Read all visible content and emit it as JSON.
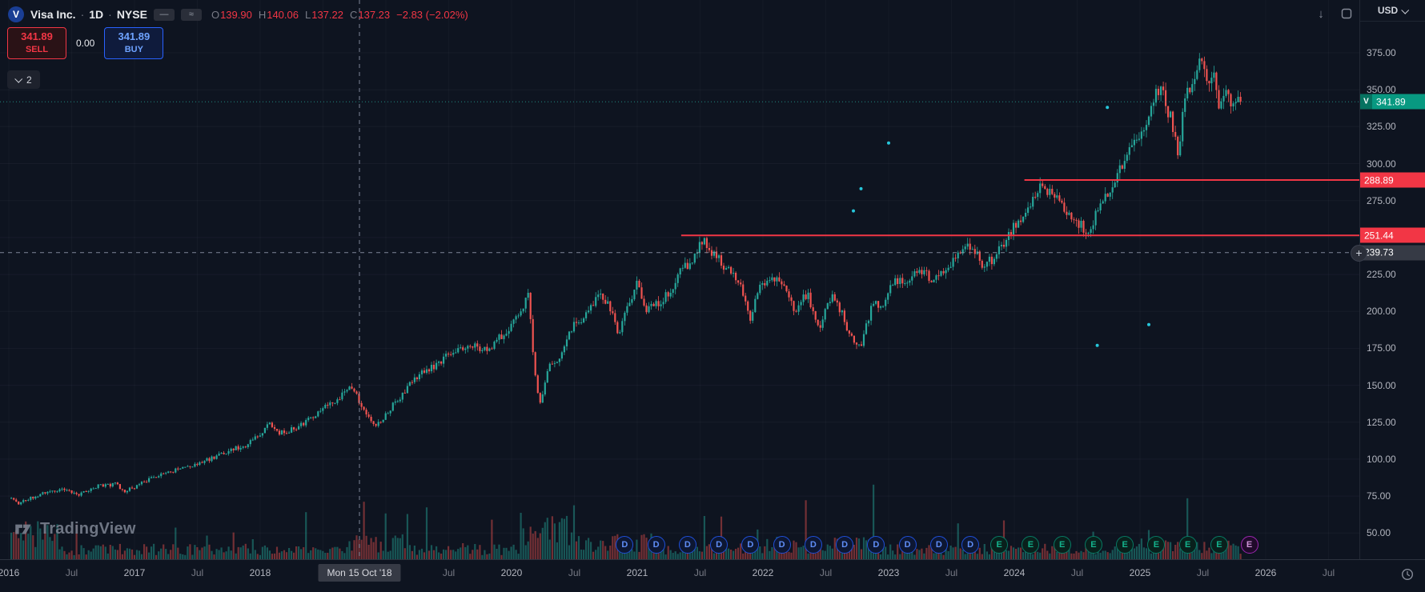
{
  "header": {
    "symbol_badge": "V",
    "title": "Visa Inc.",
    "sep": "·",
    "timeframe": "1D",
    "exchange": "NYSE",
    "ohlc": {
      "o_label": "O",
      "o": "139.90",
      "h_label": "H",
      "h": "140.06",
      "l_label": "L",
      "l": "137.22",
      "c_label": "C",
      "c": "137.23",
      "change": "−2.83 (−2.02%)"
    }
  },
  "trade_panel": {
    "sell_price": "341.89",
    "sell_label": "SELL",
    "spread": "0.00",
    "buy_price": "341.89",
    "buy_label": "BUY"
  },
  "object_tree": {
    "count": "2"
  },
  "icons": {
    "arrow_down": "↓",
    "plus": "+",
    "dash": "—",
    "approx": "≈"
  },
  "watermark": {
    "text": "TradingView"
  },
  "price_scale": {
    "currency": "USD",
    "labels": [
      {
        "p": 375,
        "text": "375.00"
      },
      {
        "p": 350,
        "text": "350.00"
      },
      {
        "p": 325,
        "text": "325.00"
      },
      {
        "p": 300,
        "text": "300.00"
      },
      {
        "p": 275,
        "text": "275.00"
      },
      {
        "p": 225,
        "text": "225.00"
      },
      {
        "p": 200,
        "text": "200.00"
      },
      {
        "p": 175,
        "text": "175.00"
      },
      {
        "p": 150,
        "text": "150.00"
      },
      {
        "p": 125,
        "text": "125.00"
      },
      {
        "p": 100,
        "text": "100.00"
      },
      {
        "p": 75,
        "text": "75.00"
      },
      {
        "p": 50,
        "text": "50.00"
      }
    ],
    "badges": [
      {
        "p": 341.89,
        "text": "341.89",
        "bg": "#089981",
        "tag": "V",
        "name": "current-price-badge"
      },
      {
        "p": 288.89,
        "text": "288.89",
        "bg": "#f23645",
        "name": "level-price-badge"
      },
      {
        "p": 251.44,
        "text": "251.44",
        "bg": "#f23645",
        "name": "level-price-badge"
      },
      {
        "p": 239.73,
        "text": "239.73",
        "bg": "#363a45",
        "name": "crosshair-price-badge"
      }
    ]
  },
  "time_scale": {
    "labels": [
      {
        "t": 2016.0,
        "text": "2016",
        "major": true
      },
      {
        "t": 2016.5,
        "text": "Jul",
        "major": false
      },
      {
        "t": 2017.0,
        "text": "2017",
        "major": true
      },
      {
        "t": 2017.5,
        "text": "Jul",
        "major": false
      },
      {
        "t": 2018.0,
        "text": "2018",
        "major": true
      },
      {
        "t": 2019.5,
        "text": "Jul",
        "major": false
      },
      {
        "t": 2020.0,
        "text": "2020",
        "major": true
      },
      {
        "t": 2020.5,
        "text": "Jul",
        "major": false
      },
      {
        "t": 2021.0,
        "text": "2021",
        "major": true
      },
      {
        "t": 2021.5,
        "text": "Jul",
        "major": false
      },
      {
        "t": 2022.0,
        "text": "2022",
        "major": true
      },
      {
        "t": 2022.5,
        "text": "Jul",
        "major": false
      },
      {
        "t": 2023.0,
        "text": "2023",
        "major": true
      },
      {
        "t": 2023.5,
        "text": "Jul",
        "major": false
      },
      {
        "t": 2024.0,
        "text": "2024",
        "major": true
      },
      {
        "t": 2024.5,
        "text": "Jul",
        "major": false
      },
      {
        "t": 2025.0,
        "text": "2025",
        "major": true
      },
      {
        "t": 2025.5,
        "text": "Jul",
        "major": false
      },
      {
        "t": 2026.0,
        "text": "2026",
        "major": true
      },
      {
        "t": 2026.5,
        "text": "Jul",
        "major": false
      }
    ],
    "date_badge": {
      "t": 2018.79,
      "text": "Mon 15 Oct '18"
    }
  },
  "event_markers": [
    {
      "t": 2020.9,
      "label": "D",
      "kind": "dividend"
    },
    {
      "t": 2021.15,
      "label": "D",
      "kind": "dividend"
    },
    {
      "t": 2021.4,
      "label": "D",
      "kind": "dividend"
    },
    {
      "t": 2021.65,
      "label": "D",
      "kind": "dividend"
    },
    {
      "t": 2021.9,
      "label": "D",
      "kind": "dividend"
    },
    {
      "t": 2022.15,
      "label": "D",
      "kind": "dividend"
    },
    {
      "t": 2022.4,
      "label": "D",
      "kind": "dividend"
    },
    {
      "t": 2022.65,
      "label": "D",
      "kind": "dividend"
    },
    {
      "t": 2022.9,
      "label": "D",
      "kind": "dividend"
    },
    {
      "t": 2023.15,
      "label": "D",
      "kind": "dividend"
    },
    {
      "t": 2023.4,
      "label": "D",
      "kind": "dividend"
    },
    {
      "t": 2023.65,
      "label": "D",
      "kind": "dividend"
    },
    {
      "t": 2023.88,
      "label": "E",
      "kind": "earnings"
    },
    {
      "t": 2024.13,
      "label": "E",
      "kind": "earnings"
    },
    {
      "t": 2024.38,
      "label": "E",
      "kind": "earnings"
    },
    {
      "t": 2024.63,
      "label": "E",
      "kind": "earnings"
    },
    {
      "t": 2024.88,
      "label": "E",
      "kind": "earnings"
    },
    {
      "t": 2025.13,
      "label": "E",
      "kind": "earnings"
    },
    {
      "t": 2025.38,
      "label": "E",
      "kind": "earnings"
    },
    {
      "t": 2025.63,
      "label": "E",
      "kind": "earnings"
    },
    {
      "t": 2025.87,
      "label": "E",
      "kind": "upcoming"
    }
  ],
  "chart_data": {
    "type": "candlestick",
    "title": "Visa Inc. · 1D · NYSE",
    "symbol": "V",
    "exchange": "NYSE",
    "timeframe": "1D",
    "currency": "USD",
    "x_range": [
      2016,
      2026.6
    ],
    "y_range": [
      32,
      410
    ],
    "grid_prices": [
      375,
      350,
      325,
      300,
      275,
      250,
      225,
      200,
      175,
      150,
      125,
      100,
      75,
      50
    ],
    "current_price": 341.89,
    "crosshair": {
      "t": 2018.79,
      "price": 239.73,
      "ohlc": [
        139.9,
        140.06,
        137.22,
        137.23
      ]
    },
    "levels": [
      {
        "price": 288.89,
        "start": 2024.08,
        "color": "#f23645"
      },
      {
        "price": 251.44,
        "start": 2021.35,
        "color": "#f23645"
      }
    ],
    "up_color": "#26a69a",
    "down_color": "#ef5350",
    "seed": 11,
    "candles_per_year": 52,
    "data_start": 2016.02,
    "data_end": 2025.8,
    "price_anchors": [
      [
        2016.0,
        75
      ],
      [
        2016.08,
        70
      ],
      [
        2016.15,
        73
      ],
      [
        2016.3,
        78
      ],
      [
        2016.45,
        80
      ],
      [
        2016.55,
        75
      ],
      [
        2016.7,
        82
      ],
      [
        2016.85,
        83
      ],
      [
        2016.92,
        78
      ],
      [
        2017.0,
        81
      ],
      [
        2017.15,
        88
      ],
      [
        2017.3,
        92
      ],
      [
        2017.45,
        95
      ],
      [
        2017.6,
        100
      ],
      [
        2017.75,
        106
      ],
      [
        2017.9,
        110
      ],
      [
        2018.0,
        117
      ],
      [
        2018.08,
        124
      ],
      [
        2018.15,
        117
      ],
      [
        2018.3,
        122
      ],
      [
        2018.45,
        131
      ],
      [
        2018.6,
        140
      ],
      [
        2018.72,
        148
      ],
      [
        2018.75,
        145
      ],
      [
        2018.79,
        139
      ],
      [
        2018.85,
        131
      ],
      [
        2018.92,
        123
      ],
      [
        2018.98,
        128
      ],
      [
        2019.1,
        141
      ],
      [
        2019.25,
        156
      ],
      [
        2019.4,
        164
      ],
      [
        2019.55,
        174
      ],
      [
        2019.7,
        178
      ],
      [
        2019.8,
        173
      ],
      [
        2019.9,
        182
      ],
      [
        2020.0,
        190
      ],
      [
        2020.1,
        206
      ],
      [
        2020.13,
        212
      ],
      [
        2020.18,
        165
      ],
      [
        2020.22,
        136
      ],
      [
        2020.3,
        162
      ],
      [
        2020.4,
        172
      ],
      [
        2020.5,
        193
      ],
      [
        2020.6,
        197
      ],
      [
        2020.65,
        205
      ],
      [
        2020.72,
        212
      ],
      [
        2020.8,
        200
      ],
      [
        2020.85,
        184
      ],
      [
        2020.92,
        205
      ],
      [
        2021.0,
        218
      ],
      [
        2021.08,
        200
      ],
      [
        2021.17,
        206
      ],
      [
        2021.25,
        212
      ],
      [
        2021.35,
        228
      ],
      [
        2021.45,
        234
      ],
      [
        2021.52,
        249
      ],
      [
        2021.6,
        240
      ],
      [
        2021.7,
        230
      ],
      [
        2021.78,
        222
      ],
      [
        2021.85,
        212
      ],
      [
        2021.9,
        196
      ],
      [
        2021.97,
        216
      ],
      [
        2022.05,
        224
      ],
      [
        2022.15,
        218
      ],
      [
        2022.25,
        200
      ],
      [
        2022.35,
        212
      ],
      [
        2022.45,
        190
      ],
      [
        2022.55,
        210
      ],
      [
        2022.63,
        198
      ],
      [
        2022.7,
        182
      ],
      [
        2022.78,
        177
      ],
      [
        2022.88,
        208
      ],
      [
        2022.95,
        202
      ],
      [
        2023.05,
        222
      ],
      [
        2023.15,
        220
      ],
      [
        2023.25,
        228
      ],
      [
        2023.35,
        222
      ],
      [
        2023.45,
        230
      ],
      [
        2023.55,
        238
      ],
      [
        2023.65,
        244
      ],
      [
        2023.75,
        232
      ],
      [
        2023.85,
        236
      ],
      [
        2023.95,
        252
      ],
      [
        2024.05,
        262
      ],
      [
        2024.15,
        276
      ],
      [
        2024.22,
        286
      ],
      [
        2024.3,
        278
      ],
      [
        2024.4,
        270
      ],
      [
        2024.48,
        262
      ],
      [
        2024.58,
        254
      ],
      [
        2024.65,
        266
      ],
      [
        2024.72,
        276
      ],
      [
        2024.8,
        288
      ],
      [
        2024.88,
        302
      ],
      [
        2024.95,
        312
      ],
      [
        2025.02,
        318
      ],
      [
        2025.08,
        338
      ],
      [
        2025.13,
        352
      ],
      [
        2025.18,
        346
      ],
      [
        2025.25,
        330
      ],
      [
        2025.3,
        305
      ],
      [
        2025.35,
        340
      ],
      [
        2025.42,
        356
      ],
      [
        2025.48,
        372
      ],
      [
        2025.53,
        352
      ],
      [
        2025.58,
        362
      ],
      [
        2025.63,
        340
      ],
      [
        2025.68,
        352
      ],
      [
        2025.73,
        336
      ],
      [
        2025.8,
        342
      ]
    ],
    "volume_boosts": [
      {
        "from": 2016.0,
        "to": 2016.4,
        "mult": 2.4
      },
      {
        "from": 2018.7,
        "to": 2019.1,
        "mult": 1.5
      },
      {
        "from": 2020.1,
        "to": 2020.5,
        "mult": 2.8
      },
      {
        "from": 2020.5,
        "to": 2021.2,
        "mult": 1.6
      },
      {
        "from": 2021.9,
        "to": 2022.9,
        "mult": 1.4
      },
      {
        "from": 2025.0,
        "to": 2025.8,
        "mult": 1.3
      }
    ],
    "dots": [
      {
        "t": 2023.0,
        "p": 314
      },
      {
        "t": 2022.72,
        "p": 268
      },
      {
        "t": 2022.78,
        "p": 283
      },
      {
        "t": 2024.66,
        "p": 177
      },
      {
        "t": 2025.07,
        "p": 191
      },
      {
        "t": 2024.74,
        "p": 338
      }
    ]
  }
}
